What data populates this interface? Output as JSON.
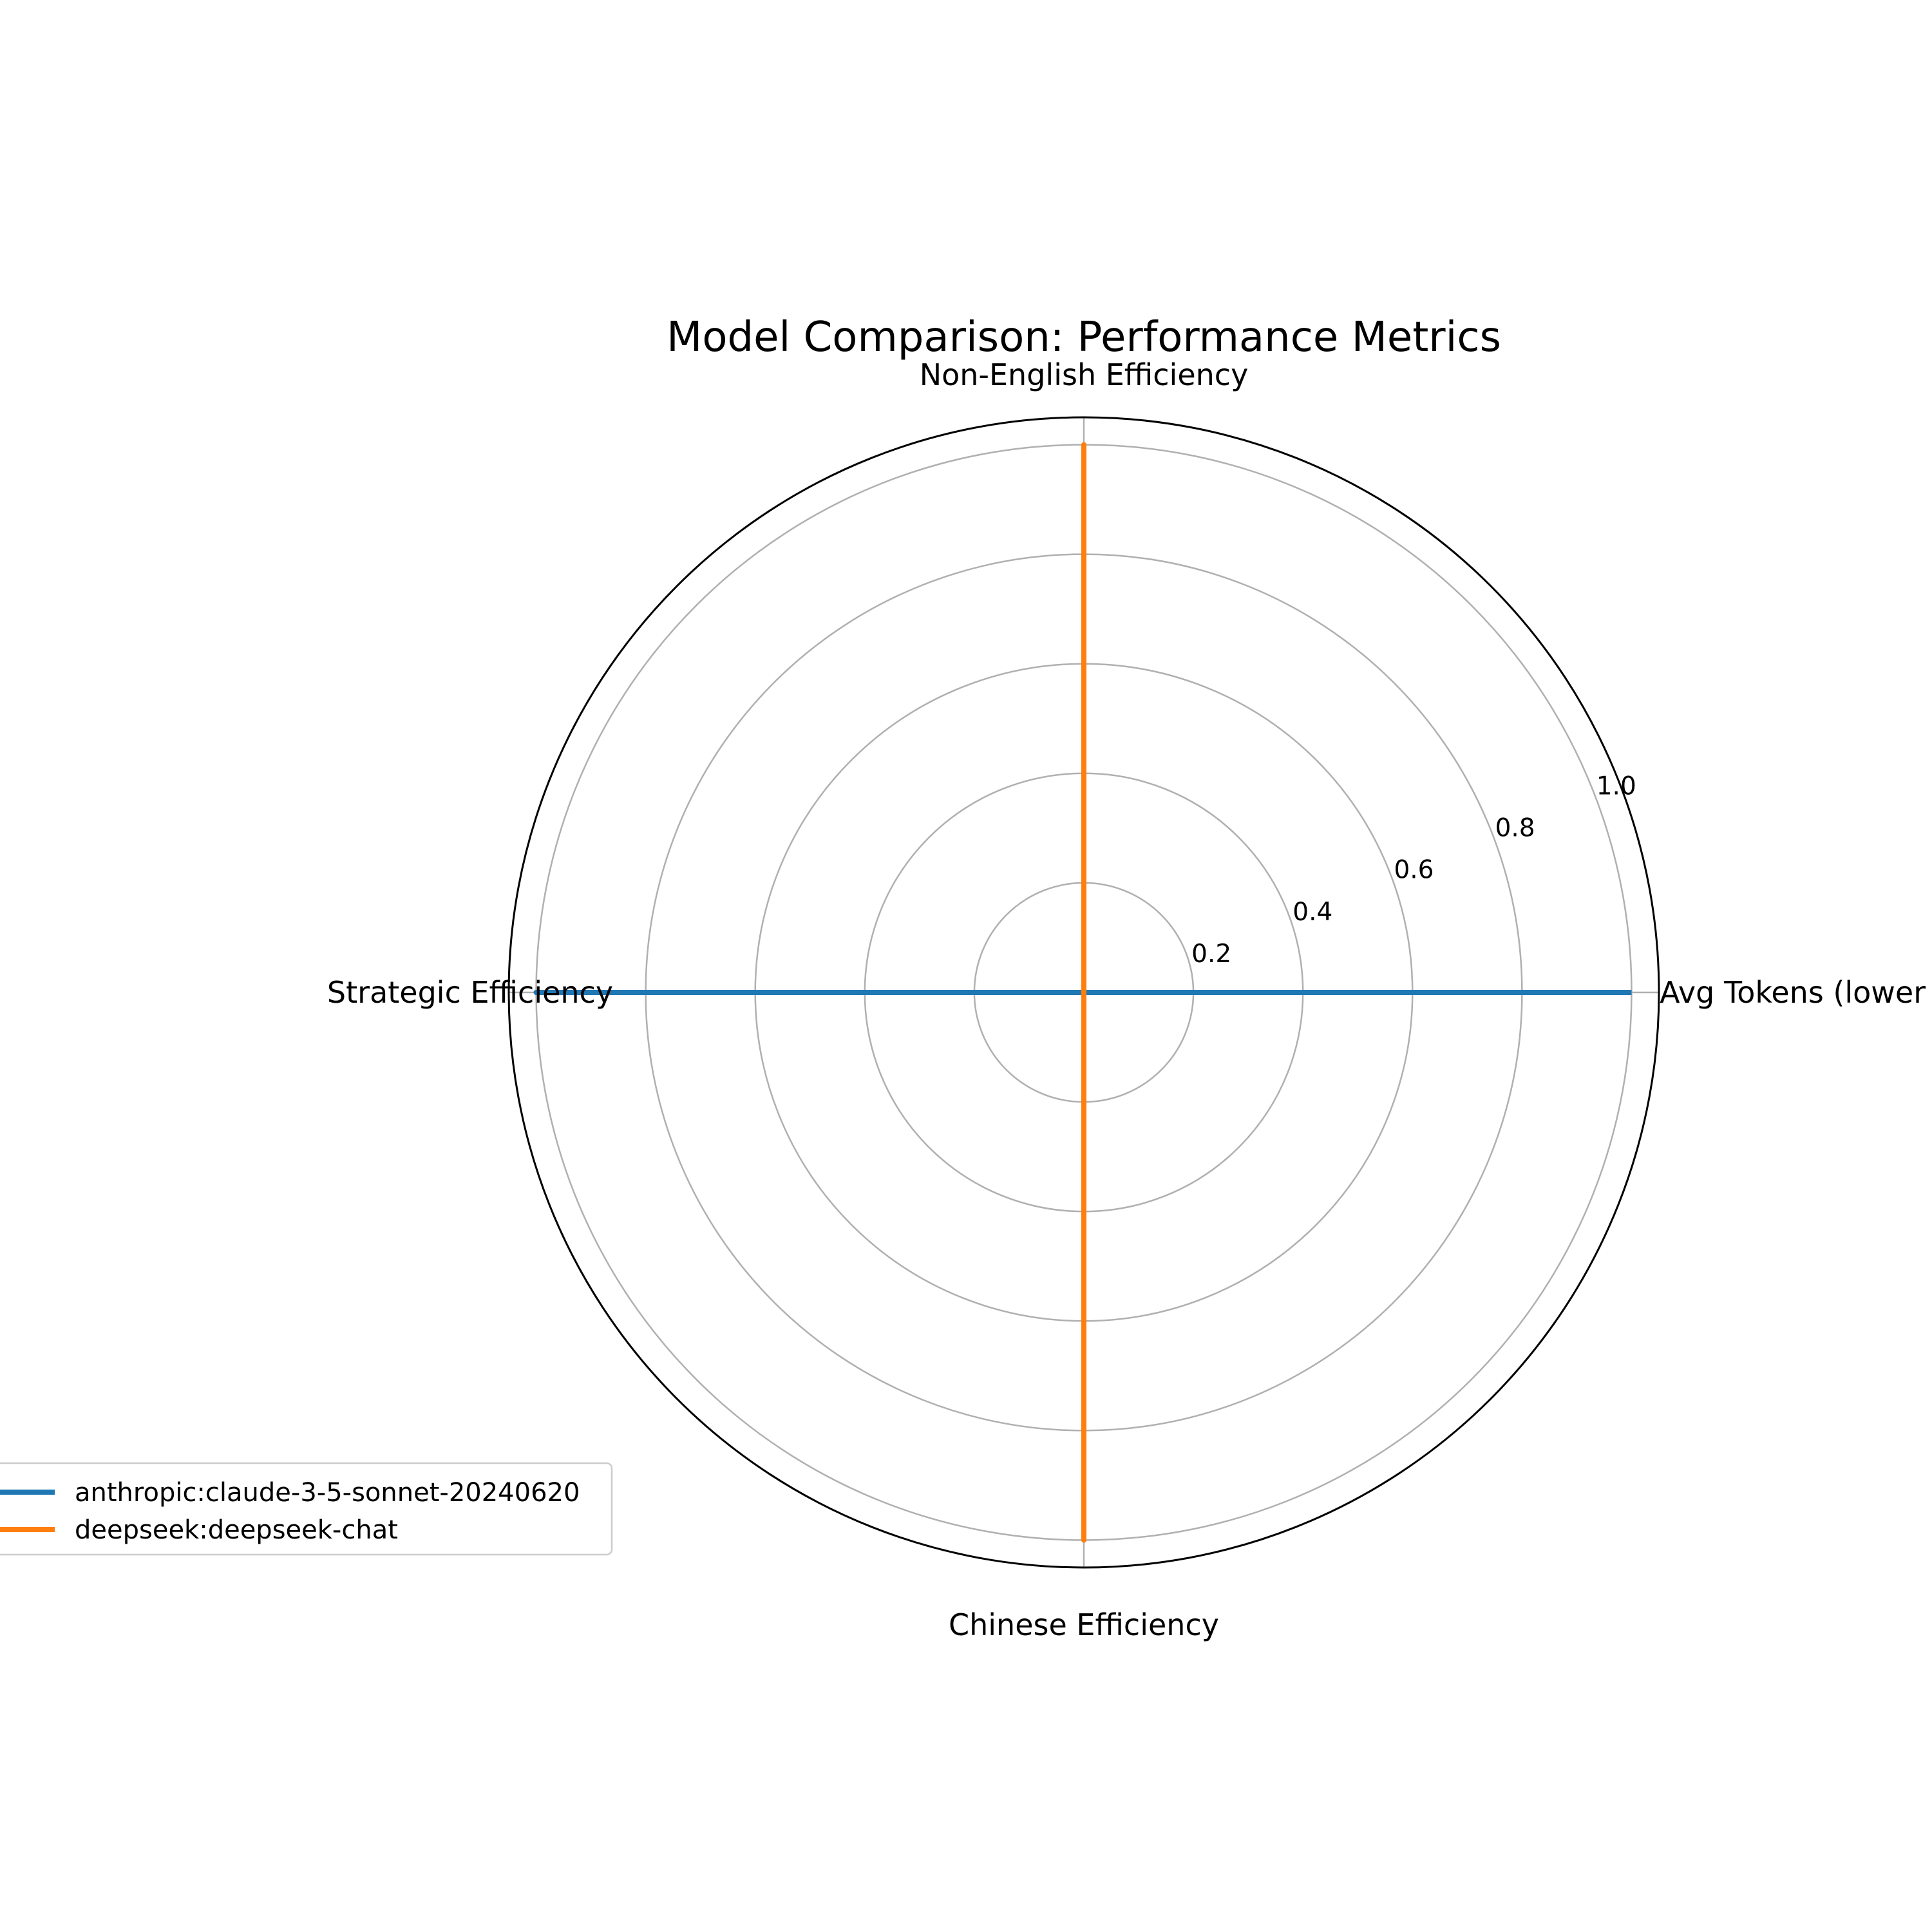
{
  "chart_data": {
    "type": "radar",
    "title": "Model Comparison: Performance Metrics",
    "axes": [
      "Avg Tokens (lower is better)",
      "Non-English Efficiency",
      "Strategic Efficiency",
      "Chinese Efficiency"
    ],
    "rlim": [
      0,
      1.05
    ],
    "r_ticks": [
      "0.2",
      "0.4",
      "0.6",
      "0.8",
      "1.0"
    ],
    "grid": true,
    "legend_position": "lower-left",
    "series": [
      {
        "name": "anthropic:claude-3-5-sonnet-20240620",
        "color": "#1f77b4",
        "values": [
          1.0,
          0.0,
          1.0,
          0.0
        ]
      },
      {
        "name": "deepseek:deepseek-chat",
        "color": "#ff7f0e",
        "values": [
          0.0,
          1.0,
          0.0,
          1.0
        ]
      }
    ]
  }
}
